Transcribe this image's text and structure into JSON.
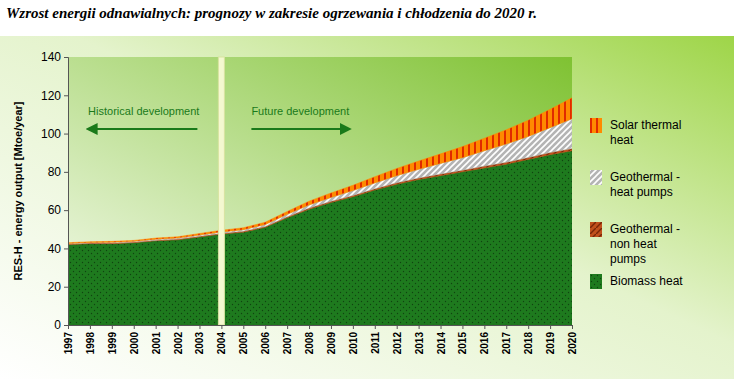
{
  "chart_data": {
    "type": "area",
    "title": "Wzrost energii odnawialnych: prognozy w zakresie ogrzewania i chłodzenia do 2020 r.",
    "y_label": "RES-H - energy output [Mtoe/year]",
    "categories": [
      "1997",
      "1998",
      "1999",
      "2000",
      "2001",
      "2002",
      "2003",
      "2004",
      "2005",
      "2006",
      "2007",
      "2008",
      "2009",
      "2010",
      "2011",
      "2012",
      "2013",
      "2014",
      "2015",
      "2016",
      "2017",
      "2018",
      "2019",
      "2020"
    ],
    "stacked": true,
    "grid": false,
    "legend": "right",
    "ylim": [
      0,
      140
    ],
    "yticks": [
      0,
      20,
      40,
      60,
      80,
      100,
      120,
      140
    ],
    "annotations": [
      {
        "text": "Historical development",
        "x": "2004",
        "arrow": "left"
      },
      {
        "text": "Future development",
        "x": "2004",
        "arrow": "right"
      }
    ],
    "series": [
      {
        "name": "Biomass heat",
        "color": "#1e7a1e",
        "values": [
          42,
          42.5,
          42.5,
          43,
          44,
          44.5,
          46,
          47.5,
          48.5,
          51,
          56,
          60.5,
          64,
          67,
          70.5,
          73.5,
          76,
          78,
          80,
          82,
          84,
          86.5,
          89,
          91
        ]
      },
      {
        "name": "Geothermal - non heat pumps",
        "color": "#c0501c",
        "values": [
          0.3,
          0.3,
          0.3,
          0.3,
          0.3,
          0.4,
          0.4,
          0.4,
          0.5,
          0.5,
          0.5,
          0.6,
          0.6,
          0.7,
          0.7,
          0.8,
          0.8,
          0.9,
          0.9,
          1,
          1,
          1,
          1.1,
          1.2
        ]
      },
      {
        "name": "Geothermal - heat pumps",
        "color": "#b4b4b4",
        "values": [
          0.3,
          0.3,
          0.4,
          0.4,
          0.5,
          0.5,
          0.6,
          0.7,
          0.8,
          1,
          1.3,
          1.6,
          2,
          2.5,
          3,
          3.7,
          4.5,
          5.5,
          6.5,
          8,
          9.5,
          11,
          13,
          15.5
        ]
      },
      {
        "name": "Solar thermal heat",
        "color": "#ff8a00",
        "values": [
          0.4,
          0.4,
          0.5,
          0.5,
          0.6,
          0.7,
          0.8,
          0.9,
          1,
          1.2,
          1.5,
          2,
          2.4,
          2.8,
          3.3,
          3.8,
          4.4,
          5,
          5.8,
          6.6,
          7.5,
          8.5,
          9.6,
          11
        ]
      }
    ]
  }
}
